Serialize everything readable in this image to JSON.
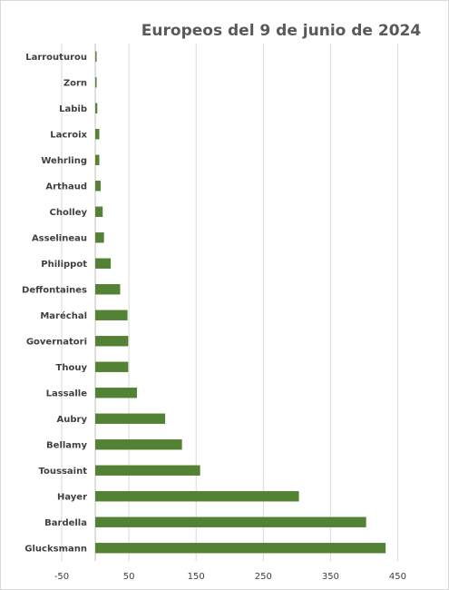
{
  "chart_data": {
    "type": "bar",
    "orientation": "horizontal",
    "title": "Europeos del 9 de junio de 2024",
    "categories": [
      "Glucksmann",
      "Bardella",
      "Hayer",
      "Toussaint",
      "Bellamy",
      "Aubry",
      "Lassalle",
      "Thouy",
      "Governatori",
      "Maréchal",
      "Deffontaines",
      "Philippot",
      "Asselineau",
      "Cholley",
      "Arthaud",
      "Wehrling",
      "Lacroix",
      "Labib",
      "Zorn",
      "Larrouturou"
    ],
    "values": [
      432,
      403,
      303,
      156,
      129,
      104,
      62,
      49,
      49,
      48,
      37,
      23,
      13,
      11,
      8,
      6,
      6,
      3,
      2,
      2
    ],
    "xlim": [
      -50,
      475
    ],
    "xticks": [
      -50,
      50,
      150,
      250,
      350,
      450
    ],
    "tick_labels": [
      "-50",
      "50",
      "150",
      "250",
      "350",
      "450"
    ],
    "grid": true,
    "legend": "none",
    "colors": {
      "bar": "#548235",
      "grid": "#d9d9d9",
      "text": "#404040",
      "title": "#595959"
    }
  }
}
